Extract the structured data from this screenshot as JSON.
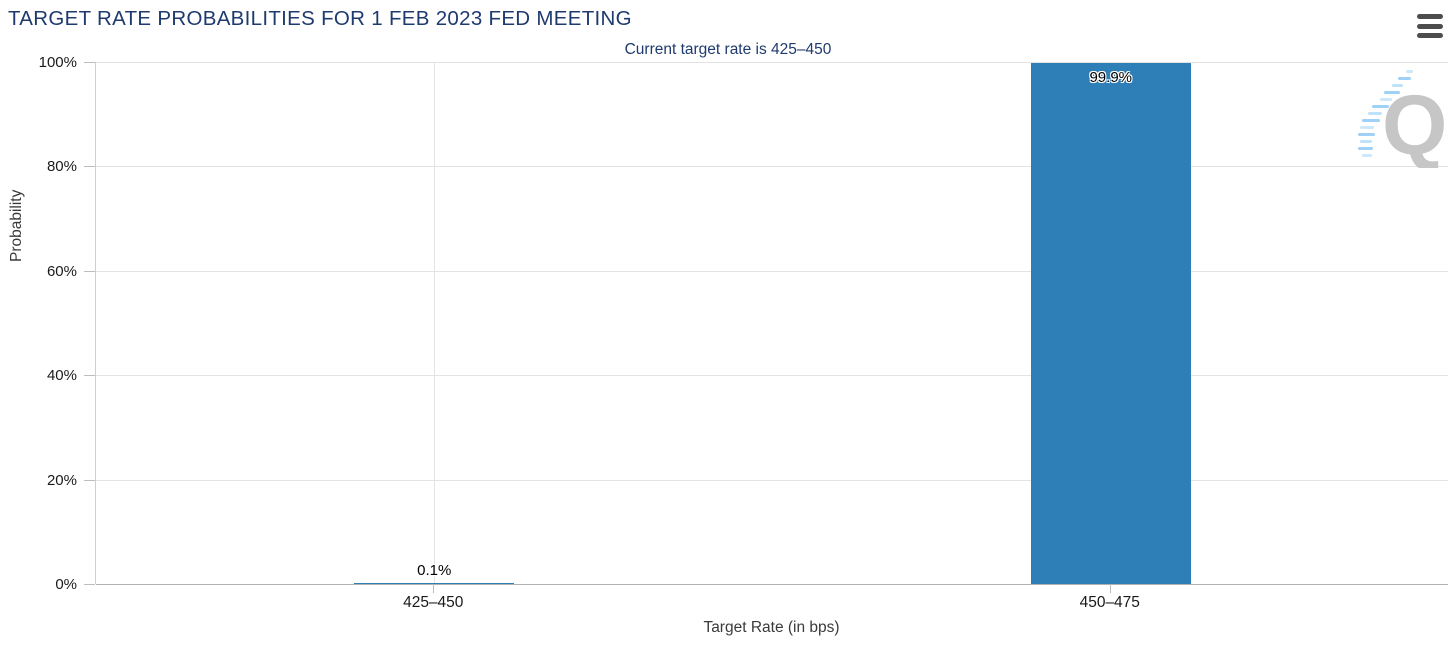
{
  "header": {
    "title": "TARGET RATE PROBABILITIES FOR 1 FEB 2023 FED MEETING"
  },
  "menu": {
    "icon": "hamburger-icon"
  },
  "chart_data": {
    "type": "bar",
    "title": "Current target rate is 425–450",
    "categories": [
      "425–450",
      "450–475"
    ],
    "values": [
      0.1,
      99.9
    ],
    "value_labels": [
      "0.1%",
      "99.9%"
    ],
    "xlabel": "Target Rate (in bps)",
    "ylabel": "Probability",
    "ylim": [
      0,
      100
    ],
    "ytick_values": [
      0,
      20,
      40,
      60,
      80,
      100
    ],
    "ytick_labels": [
      "0%",
      "20%",
      "40%",
      "60%",
      "80%",
      "100%"
    ],
    "grid": true,
    "legend": "none",
    "bar_color": "#2e7eb8"
  },
  "colors": {
    "title_navy": "#1e3a6e",
    "bar_blue": "#2e7eb8",
    "gridline": "#e3e3e3",
    "baseline": "#b0b0b0",
    "watermark_gray": "#c6c6c6",
    "watermark_blue": "#9fd0f5"
  },
  "watermark": {
    "letter": "Q"
  }
}
